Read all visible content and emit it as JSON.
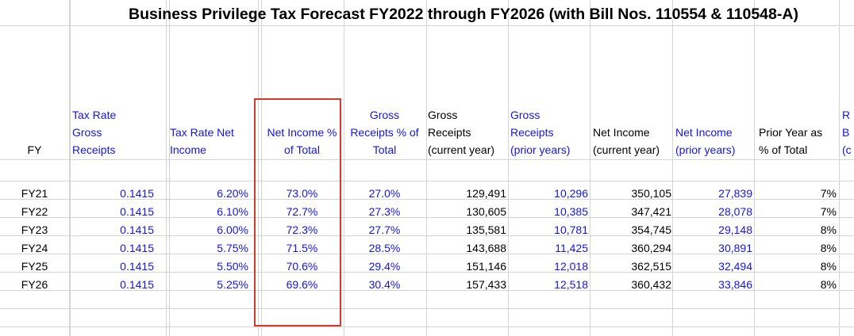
{
  "title": "Business Privilege Tax Forecast FY2022 through FY2026 (with Bill Nos. 110554 & 110548-A)",
  "headers": {
    "fy": [
      "FY"
    ],
    "tax_rate_gross": [
      "Tax Rate",
      "Gross",
      "Receipts"
    ],
    "tax_rate_net": [
      "Tax Rate Net",
      "Income"
    ],
    "net_income_pct": [
      "Net Income %",
      "of Total"
    ],
    "gross_receipts_pct": [
      "Gross",
      "Receipts % of",
      "Total"
    ],
    "gross_current": [
      "Gross",
      "Receipts",
      "(current year)"
    ],
    "gross_prior": [
      "Gross",
      "Receipts",
      "(prior years)"
    ],
    "net_current": [
      "Net Income",
      "(current year)"
    ],
    "net_prior": [
      "Net Income",
      "(prior years)"
    ],
    "prior_year_pct": [
      "Prior Year as",
      "% of Total"
    ],
    "cut": [
      "R",
      "B",
      "(c"
    ]
  },
  "rows": [
    {
      "fy": "FY21",
      "tax_rate_gross": "0.1415",
      "tax_rate_net": "6.20%",
      "net_income_pct": "73.0%",
      "gross_receipts_pct": "27.0%",
      "gross_current": "129,491",
      "gross_prior": "10,296",
      "net_current": "350,105",
      "net_prior": "27,839",
      "prior_year_pct": "7%"
    },
    {
      "fy": "FY22",
      "tax_rate_gross": "0.1415",
      "tax_rate_net": "6.10%",
      "net_income_pct": "72.7%",
      "gross_receipts_pct": "27.3%",
      "gross_current": "130,605",
      "gross_prior": "10,385",
      "net_current": "347,421",
      "net_prior": "28,078",
      "prior_year_pct": "7%"
    },
    {
      "fy": "FY23",
      "tax_rate_gross": "0.1415",
      "tax_rate_net": "6.00%",
      "net_income_pct": "72.3%",
      "gross_receipts_pct": "27.7%",
      "gross_current": "135,581",
      "gross_prior": "10,781",
      "net_current": "354,745",
      "net_prior": "29,148",
      "prior_year_pct": "8%"
    },
    {
      "fy": "FY24",
      "tax_rate_gross": "0.1415",
      "tax_rate_net": "5.75%",
      "net_income_pct": "71.5%",
      "gross_receipts_pct": "28.5%",
      "gross_current": "143,688",
      "gross_prior": "11,425",
      "net_current": "360,294",
      "net_prior": "30,891",
      "prior_year_pct": "8%"
    },
    {
      "fy": "FY25",
      "tax_rate_gross": "0.1415",
      "tax_rate_net": "5.50%",
      "net_income_pct": "70.6%",
      "gross_receipts_pct": "29.4%",
      "gross_current": "151,146",
      "gross_prior": "12,018",
      "net_current": "362,515",
      "net_prior": "32,494",
      "prior_year_pct": "8%"
    },
    {
      "fy": "FY26",
      "tax_rate_gross": "0.1415",
      "tax_rate_net": "5.25%",
      "net_income_pct": "69.6%",
      "gross_receipts_pct": "30.4%",
      "gross_current": "157,433",
      "gross_prior": "12,518",
      "net_current": "360,432",
      "net_prior": "33,846",
      "prior_year_pct": "8%"
    }
  ],
  "colors": {
    "input_blue": "#1414e6",
    "highlight_red": "#d33a2c",
    "gridline": "#d4d4d4"
  }
}
